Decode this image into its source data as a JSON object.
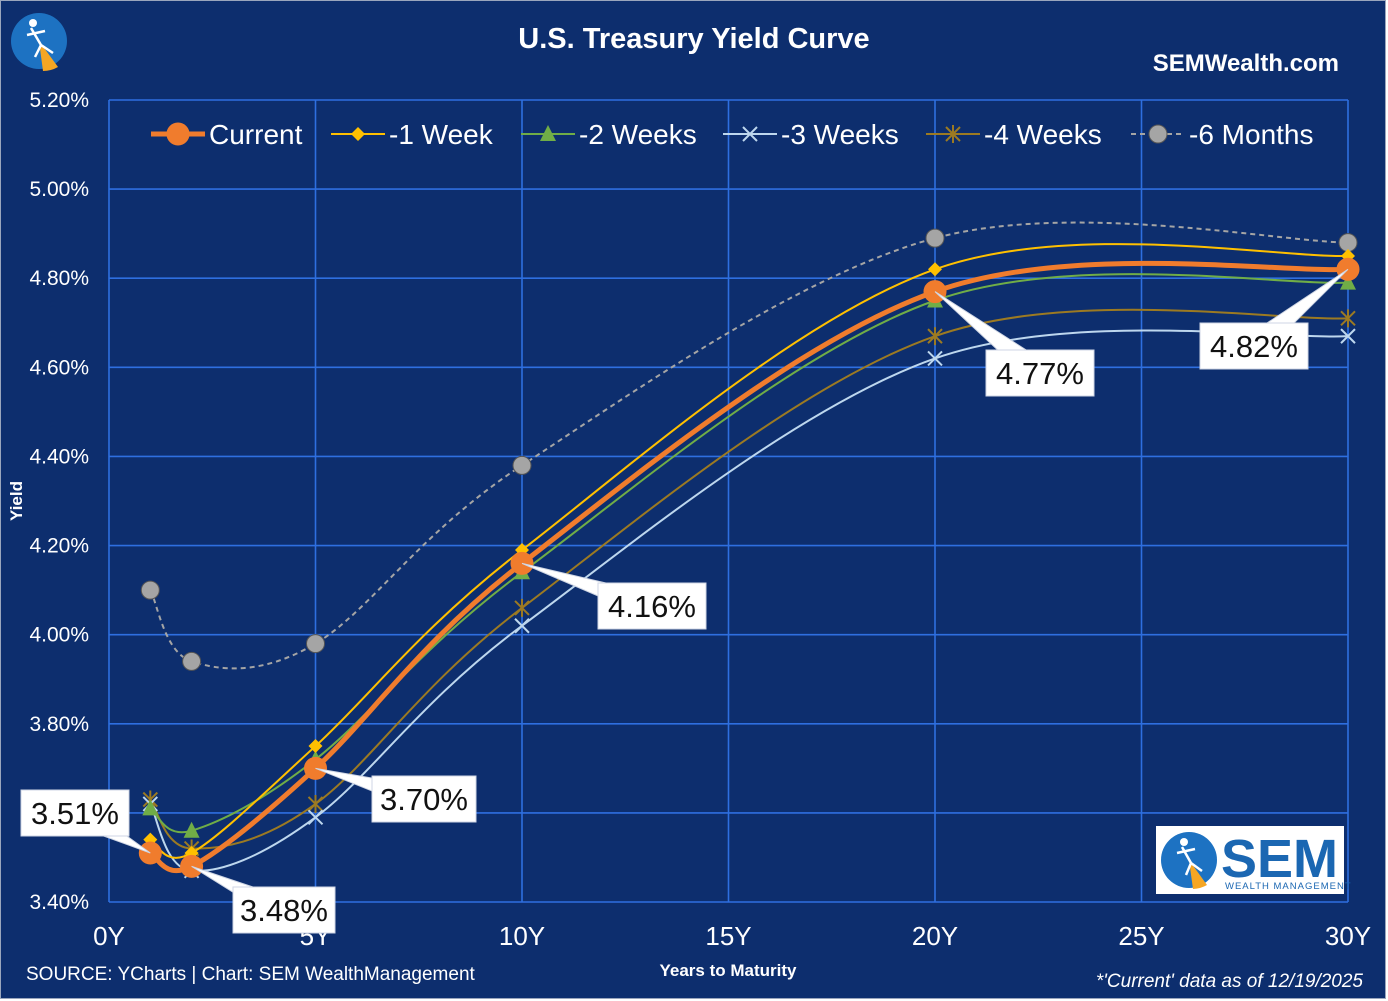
{
  "header": {
    "title": "U.S. Treasury Yield Curve",
    "site": "SEMWealth.com"
  },
  "footer": {
    "source": "SOURCE: YCharts | Chart: SEM WealthManagement",
    "note": "*'Current' data as of 12/19/2025"
  },
  "logo": {
    "name": "SEM",
    "tagline": "WEALTH MANAGEMENT",
    "icon": "sem-skier-logo-icon"
  },
  "chart_data": {
    "type": "line",
    "xlabel": "Years to Maturity",
    "ylabel": "Yield",
    "xlim": [
      0,
      30
    ],
    "ylim": [
      3.4,
      5.2
    ],
    "x_ticks": [
      0,
      5,
      10,
      15,
      20,
      25,
      30
    ],
    "x_tick_labels": [
      "0Y",
      "5Y",
      "10Y",
      "15Y",
      "20Y",
      "25Y",
      "30Y"
    ],
    "y_ticks": [
      3.4,
      3.6,
      3.8,
      4.0,
      4.2,
      4.4,
      4.6,
      4.8,
      5.0,
      5.2
    ],
    "y_tick_labels": [
      "3.40%",
      "3.60%",
      "3.80%",
      "4.00%",
      "4.20%",
      "4.40%",
      "4.60%",
      "4.80%",
      "5.00%",
      "5.20%"
    ],
    "grid": true,
    "smooth": true,
    "legend_position": "top",
    "series": [
      {
        "name": "Current",
        "color": "#f07c2d",
        "marker": "circle",
        "x": [
          1,
          2,
          5,
          10,
          20,
          30
        ],
        "values": [
          3.51,
          3.48,
          3.7,
          4.16,
          4.77,
          4.82
        ]
      },
      {
        "name": "-1 Week",
        "color": "#ffc000",
        "marker": "diamond",
        "x": [
          1,
          2,
          5,
          10,
          20,
          30
        ],
        "values": [
          3.54,
          3.51,
          3.75,
          4.19,
          4.82,
          4.85
        ]
      },
      {
        "name": "-2 Weeks",
        "color": "#70ad47",
        "marker": "triangle",
        "x": [
          1,
          2,
          5,
          10,
          20,
          30
        ],
        "values": [
          3.61,
          3.56,
          3.72,
          4.14,
          4.75,
          4.79
        ]
      },
      {
        "name": "-3 Weeks",
        "color": "#bdd7ee",
        "marker": "x",
        "x": [
          1,
          2,
          5,
          10,
          20,
          30
        ],
        "values": [
          3.62,
          3.47,
          3.59,
          4.02,
          4.62,
          4.67
        ]
      },
      {
        "name": "-4 Weeks",
        "color": "#9c7a22",
        "marker": "star",
        "x": [
          1,
          2,
          5,
          10,
          20,
          30
        ],
        "values": [
          3.63,
          3.52,
          3.62,
          4.06,
          4.67,
          4.71
        ]
      },
      {
        "name": "-6 Months",
        "color": "#a5a5a5",
        "marker": "circle",
        "dashed": true,
        "x": [
          1,
          2,
          5,
          10,
          20,
          30
        ],
        "values": [
          4.1,
          3.94,
          3.98,
          4.38,
          4.89,
          4.88
        ]
      }
    ],
    "annotations": [
      {
        "text": "3.51%",
        "x": 1,
        "y": 3.51
      },
      {
        "text": "3.48%",
        "x": 2,
        "y": 3.48
      },
      {
        "text": "3.70%",
        "x": 5,
        "y": 3.7
      },
      {
        "text": "4.16%",
        "x": 10,
        "y": 4.16
      },
      {
        "text": "4.77%",
        "x": 20,
        "y": 4.77
      },
      {
        "text": "4.82%",
        "x": 30,
        "y": 4.82
      }
    ]
  }
}
